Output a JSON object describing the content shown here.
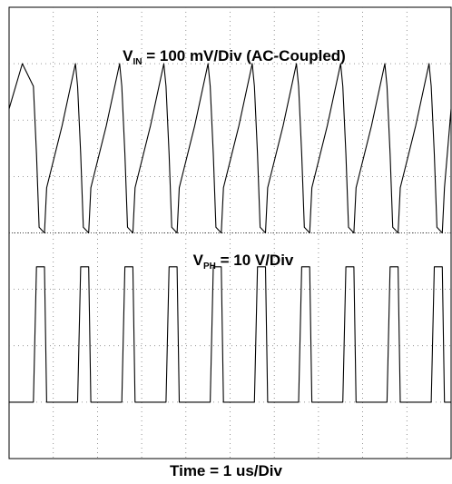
{
  "chart_data": {
    "type": "line",
    "grid": true,
    "divisions": {
      "x": 10,
      "y": 8
    },
    "x_unit_label": "Time = 1 us/Div",
    "x": [
      0.0,
      0.3,
      0.55,
      0.62,
      0.68,
      0.8,
      0.85,
      1.2,
      1.5,
      1.55,
      1.62,
      1.68,
      1.8,
      1.85,
      2.2,
      2.5,
      2.55,
      2.62,
      2.68,
      2.8,
      2.85,
      3.2,
      3.5,
      3.55,
      3.62,
      3.68,
      3.8,
      3.85,
      4.2,
      4.5,
      4.55,
      4.62,
      4.68,
      4.8,
      4.85,
      5.2,
      5.5,
      5.55,
      5.62,
      5.68,
      5.8,
      5.85,
      6.2,
      6.5,
      6.55,
      6.62,
      6.68,
      6.8,
      6.85,
      7.2,
      7.5,
      7.55,
      7.62,
      7.68,
      7.8,
      7.85,
      8.2,
      8.5,
      8.55,
      8.62,
      8.68,
      8.8,
      8.85,
      9.2,
      9.5,
      9.55,
      9.62,
      9.68,
      9.8,
      9.85,
      10.0
    ],
    "series": [
      {
        "name": "V_IN",
        "label_main": "V",
        "label_sub": "IN",
        "label_rest": " = 100 mV/Div (AC-Coupled)",
        "color": "#000000",
        "values": [
          6.2,
          7.0,
          6.6,
          5.4,
          4.1,
          4.0,
          4.8,
          5.9,
          7.0,
          6.6,
          5.4,
          4.1,
          4.0,
          4.8,
          5.9,
          7.0,
          6.6,
          5.4,
          4.1,
          4.0,
          4.8,
          5.9,
          7.0,
          6.6,
          5.4,
          4.1,
          4.0,
          4.8,
          5.9,
          7.0,
          6.6,
          5.4,
          4.1,
          4.0,
          4.8,
          5.9,
          7.0,
          6.6,
          5.4,
          4.1,
          4.0,
          4.8,
          5.9,
          7.0,
          6.6,
          5.4,
          4.1,
          4.0,
          4.8,
          5.9,
          7.0,
          6.6,
          5.4,
          4.1,
          4.0,
          4.8,
          5.9,
          7.0,
          6.6,
          5.4,
          4.1,
          4.0,
          4.8,
          5.9,
          7.0,
          6.6,
          5.4,
          4.1,
          4.0,
          4.8,
          6.2
        ]
      },
      {
        "name": "V_PH",
        "label_main": "V",
        "label_sub": "PH",
        "label_rest": " = 10 V/Div",
        "color": "#000000",
        "values": [
          1.0,
          1.0,
          1.0,
          3.4,
          3.4,
          3.4,
          1.0,
          1.0,
          1.0,
          1.0,
          3.4,
          3.4,
          3.4,
          1.0,
          1.0,
          1.0,
          1.0,
          3.4,
          3.4,
          3.4,
          1.0,
          1.0,
          1.0,
          1.0,
          3.4,
          3.4,
          3.4,
          1.0,
          1.0,
          1.0,
          1.0,
          3.4,
          3.4,
          3.4,
          1.0,
          1.0,
          1.0,
          1.0,
          3.4,
          3.4,
          3.4,
          1.0,
          1.0,
          1.0,
          1.0,
          3.4,
          3.4,
          3.4,
          1.0,
          1.0,
          1.0,
          1.0,
          3.4,
          3.4,
          3.4,
          1.0,
          1.0,
          1.0,
          1.0,
          3.4,
          3.4,
          3.4,
          1.0,
          1.0,
          1.0,
          1.0,
          3.4,
          3.4,
          3.4,
          1.0,
          1.0
        ]
      }
    ]
  }
}
